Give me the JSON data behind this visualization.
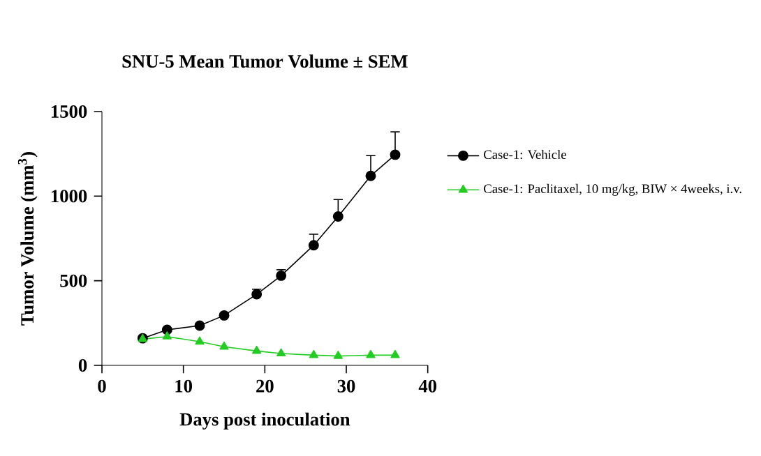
{
  "chart_data": {
    "type": "line",
    "title": "SNU-5 Mean Tumor Volume ± SEM",
    "xlabel": "Days post inoculation",
    "ylabel": "Tumor Volume (mm$^{3}$)",
    "x": [
      5,
      8,
      12,
      15,
      19,
      22,
      26,
      29,
      33,
      36
    ],
    "series": [
      {
        "name": "Case-1: Vehicle",
        "color": "#000000",
        "marker": "circle",
        "values": [
          160,
          210,
          235,
          295,
          420,
          530,
          710,
          880,
          1120,
          1245
        ],
        "errors": [
          [
            160,
            170
          ],
          [
            210,
            220
          ],
          [
            235,
            245
          ],
          [
            295,
            305
          ],
          [
            420,
            450
          ],
          [
            530,
            565
          ],
          [
            710,
            775
          ],
          [
            880,
            980
          ],
          [
            1120,
            1240
          ],
          [
            1245,
            1380
          ]
        ]
      },
      {
        "name": "Case-1: Paclitaxel, 10 mg/kg, BIW × 4weeks, i.v.",
        "color": "#22cc22",
        "marker": "triangle",
        "values": [
          155,
          170,
          140,
          110,
          85,
          70,
          60,
          55,
          60,
          60
        ]
      }
    ],
    "xlim": [
      0,
      40
    ],
    "xticks": [
      0,
      10,
      20,
      30,
      40
    ],
    "ylim": [
      0,
      1500
    ],
    "yticks": [
      0,
      500,
      1000,
      1500
    ],
    "legend": "right",
    "grid": false
  }
}
